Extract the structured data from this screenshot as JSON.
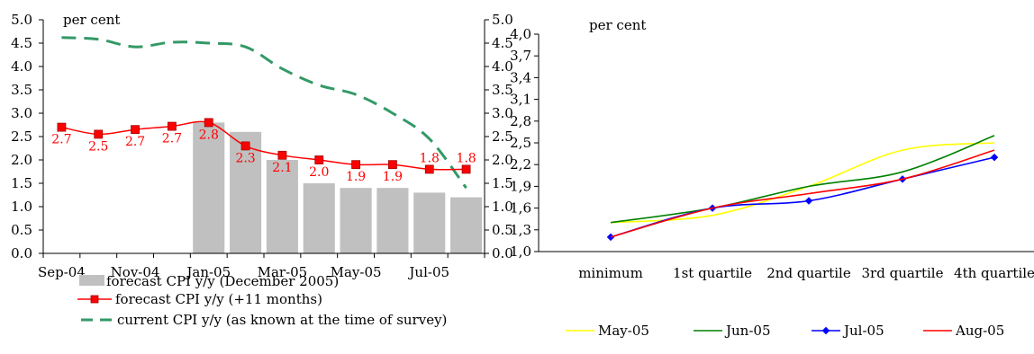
{
  "chart_data": [
    {
      "type": "bar+line",
      "unit_label": "per cent",
      "x_tick_labels": [
        "Sep-04",
        "Nov-04",
        "Jan-05",
        "Mar-05",
        "May-05",
        "Jul-05"
      ],
      "periods": [
        "Sep-04",
        "Oct-04",
        "Nov-04",
        "Dec-04",
        "Jan-05",
        "Feb-05",
        "Mar-05",
        "Apr-05",
        "May-05",
        "Jun-05",
        "Jul-05",
        "Aug-05"
      ],
      "ylim": [
        0,
        5
      ],
      "y_ticks": [
        "0.0",
        "0.5",
        "1.0",
        "1.5",
        "2.0",
        "2.5",
        "3.0",
        "3.5",
        "4.0",
        "4.5",
        "5.0"
      ],
      "grid": false,
      "legend_position": "bottom",
      "series": [
        {
          "name": "forecast CPI y/y (December 2005)",
          "kind": "bar",
          "color": "#c0c0c0",
          "values": [
            null,
            null,
            null,
            null,
            2.8,
            2.6,
            2.0,
            1.5,
            1.4,
            1.4,
            1.3,
            1.2
          ]
        },
        {
          "name": "forecast CPI y/y (+11 months)",
          "kind": "line-marker",
          "color": "#ff0000",
          "values": [
            2.7,
            2.55,
            2.65,
            2.72,
            2.8,
            2.3,
            2.1,
            2.0,
            1.9,
            1.9,
            1.8,
            1.8
          ],
          "data_labels": [
            "2.7",
            "2.5",
            "2.7",
            "2.7",
            "2.8",
            "2.3",
            "2.1",
            "2.0",
            "1.9",
            "1.9",
            "1.8",
            "1.8"
          ]
        },
        {
          "name": "current CPI y/y (as known at the time of survey)",
          "kind": "dashed-line",
          "color": "#339966",
          "values": [
            4.62,
            4.58,
            4.42,
            4.52,
            4.5,
            4.42,
            3.95,
            3.6,
            3.4,
            3.0,
            2.45,
            1.4
          ]
        }
      ]
    },
    {
      "type": "line",
      "unit_label": "per cent",
      "categories": [
        "minimum",
        "1st quartile",
        "2nd quartile",
        "3rd quartile",
        "4th quartile"
      ],
      "ylim": [
        1.0,
        4.0
      ],
      "y_ticks": [
        "1,0",
        "1,3",
        "1,6",
        "1,9",
        "2,2",
        "2,5",
        "2,8",
        "3,1",
        "3,4",
        "3,7",
        "4,0"
      ],
      "grid": false,
      "legend_position": "bottom",
      "series": [
        {
          "name": "May-05",
          "color": "#ffff00",
          "marker": false,
          "values": [
            1.4,
            1.5,
            1.9,
            2.4,
            2.5
          ]
        },
        {
          "name": "Jun-05",
          "color": "#008000",
          "marker": false,
          "values": [
            1.4,
            1.6,
            1.9,
            2.1,
            2.6
          ]
        },
        {
          "name": "Jul-05",
          "color": "#0000ff",
          "marker": true,
          "values": [
            1.2,
            1.6,
            1.7,
            2.0,
            2.3
          ]
        },
        {
          "name": "Aug-05",
          "color": "#ff0000",
          "marker": false,
          "values": [
            1.2,
            1.6,
            1.8,
            2.0,
            2.4
          ]
        }
      ]
    }
  ]
}
